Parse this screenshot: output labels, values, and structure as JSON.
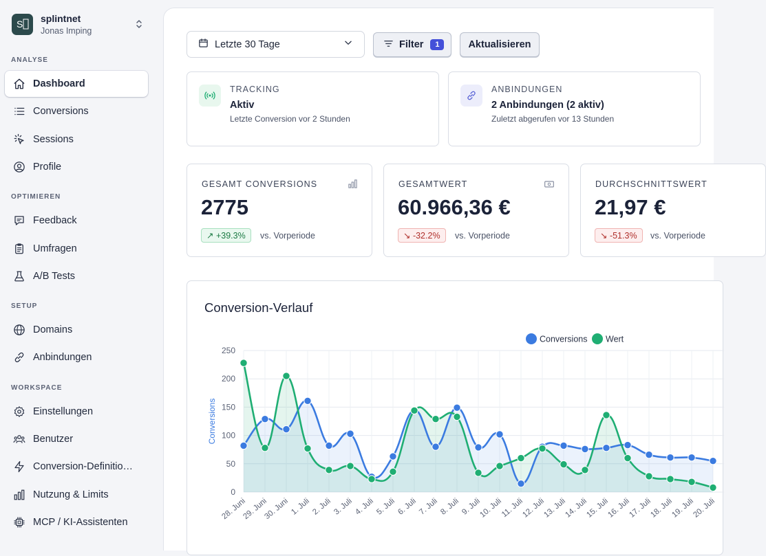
{
  "workspace": {
    "logo_text": "S⃞",
    "name": "splintnet",
    "user": "Jonas Imping"
  },
  "sidebar": {
    "sections": [
      {
        "label": "ANALYSE",
        "items": [
          {
            "label": "Dashboard",
            "icon": "home-icon",
            "active": true
          },
          {
            "label": "Conversions",
            "icon": "list-icon"
          },
          {
            "label": "Sessions",
            "icon": "cursor-click-icon"
          },
          {
            "label": "Profile",
            "icon": "user-circle-icon"
          }
        ]
      },
      {
        "label": "OPTIMIEREN",
        "items": [
          {
            "label": "Feedback",
            "icon": "chat-bubble-icon"
          },
          {
            "label": "Umfragen",
            "icon": "clipboard-icon"
          },
          {
            "label": "A/B Tests",
            "icon": "beaker-icon"
          }
        ]
      },
      {
        "label": "SETUP",
        "items": [
          {
            "label": "Domains",
            "icon": "globe-icon"
          },
          {
            "label": "Anbindungen",
            "icon": "link-icon"
          }
        ]
      },
      {
        "label": "WORKSPACE",
        "items": [
          {
            "label": "Einstellungen",
            "icon": "gear-icon"
          },
          {
            "label": "Benutzer",
            "icon": "users-icon"
          },
          {
            "label": "Conversion-Definitio…",
            "icon": "bolt-icon"
          },
          {
            "label": "Nutzung & Limits",
            "icon": "bar-chart-icon"
          },
          {
            "label": "MCP / KI-Assistenten",
            "icon": "chip-icon"
          }
        ]
      }
    ]
  },
  "toolbar": {
    "date_range": "Letzte 30 Tage",
    "filter_label": "Filter",
    "filter_count": "1",
    "refresh_label": "Aktualisieren"
  },
  "status": {
    "tracking": {
      "title": "TRACKING",
      "value": "Aktiv",
      "sub": "Letzte Conversion vor 2 Stunden"
    },
    "integrations": {
      "title": "ANBINDUNGEN",
      "value": "2 Anbindungen (2 aktiv)",
      "sub": "Zuletzt abgerufen vor 13 Stunden"
    }
  },
  "kpis": [
    {
      "title": "GESAMT CONVERSIONS",
      "value": "2775",
      "delta": "↗ +39.3%",
      "direction": "up",
      "compare": "vs. Vorperiode",
      "icon": "bar-chart-icon"
    },
    {
      "title": "GESAMTWERT",
      "value": "60.966,36 €",
      "delta": "↘ -32.2%",
      "direction": "down",
      "compare": "vs. Vorperiode",
      "icon": "banknote-icon"
    },
    {
      "title": "DURCHSCHNITTSWERT",
      "value": "21,97 €",
      "delta": "↘ -51.3%",
      "direction": "down",
      "compare": "vs. Vorperiode",
      "icon": ""
    }
  ],
  "chart_title": "Conversion-Verlauf",
  "colors": {
    "conversions": "#3b7be0",
    "wert": "#1fae73",
    "accent": "#4450d9"
  },
  "chart_data": {
    "type": "line",
    "title": "Conversion-Verlauf",
    "ylabel": "Conversions",
    "xlabel": "",
    "ylim": [
      0,
      250
    ],
    "yticks": [
      0,
      50,
      100,
      150,
      200,
      250
    ],
    "legend_position": "top",
    "grid": true,
    "categories": [
      "28. Juni",
      "29. Juni",
      "30. Juni",
      "1. Juli",
      "2. Juli",
      "3. Juli",
      "4. Juli",
      "5. Juli",
      "6. Juli",
      "7. Juli",
      "8. Juli",
      "9. Juli",
      "10. Juli",
      "11. Juli",
      "12. Juli",
      "13. Juli",
      "14. Juli",
      "15. Juli",
      "16. Juli",
      "17. Juli",
      "18. Juli",
      "19. Juli",
      "20. Juli"
    ],
    "series": [
      {
        "name": "Conversions",
        "values": [
          82,
          129,
          111,
          161,
          82,
          103,
          27,
          63,
          145,
          80,
          149,
          79,
          102,
          15,
          80,
          82,
          76,
          78,
          83,
          66,
          61,
          61,
          55
        ]
      },
      {
        "name": "Wert",
        "values": [
          228,
          78,
          205,
          77,
          39,
          46,
          23,
          36,
          144,
          129,
          133,
          34,
          46,
          60,
          77,
          49,
          39,
          136,
          60,
          28,
          23,
          18,
          8
        ]
      }
    ]
  }
}
